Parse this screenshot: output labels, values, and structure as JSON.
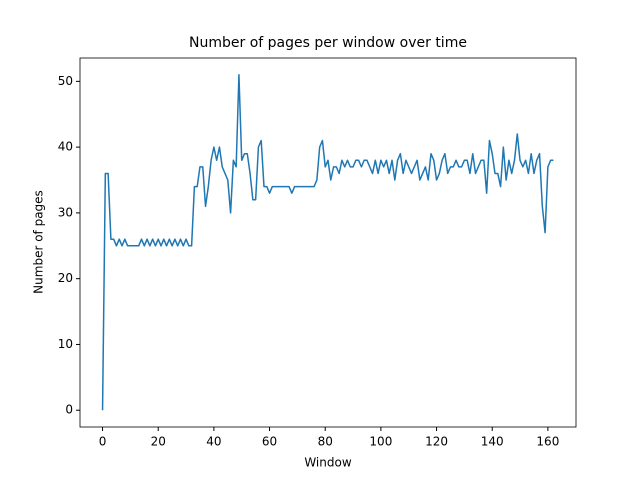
{
  "chart_data": {
    "type": "line",
    "title": "Number of pages per window over time",
    "x_label": "Window",
    "y_label": "Number of pages",
    "x": [
      0,
      1,
      2,
      3,
      4,
      5,
      6,
      7,
      8,
      9,
      10,
      11,
      12,
      13,
      14,
      15,
      16,
      17,
      18,
      19,
      20,
      21,
      22,
      23,
      24,
      25,
      26,
      27,
      28,
      29,
      30,
      31,
      32,
      33,
      34,
      35,
      36,
      37,
      38,
      39,
      40,
      41,
      42,
      43,
      44,
      45,
      46,
      47,
      48,
      49,
      50,
      51,
      52,
      53,
      54,
      55,
      56,
      57,
      58,
      59,
      60,
      61,
      62,
      63,
      64,
      65,
      66,
      67,
      68,
      69,
      70,
      71,
      72,
      73,
      74,
      75,
      76,
      77,
      78,
      79,
      80,
      81,
      82,
      83,
      84,
      85,
      86,
      87,
      88,
      89,
      90,
      91,
      92,
      93,
      94,
      95,
      96,
      97,
      98,
      99,
      100,
      101,
      102,
      103,
      104,
      105,
      106,
      107,
      108,
      109,
      110,
      111,
      112,
      113,
      114,
      115,
      116,
      117,
      118,
      119,
      120,
      121,
      122,
      123,
      124,
      125,
      126,
      127,
      128,
      129,
      130,
      131,
      132,
      133,
      134,
      135,
      136,
      137,
      138,
      139,
      140,
      141,
      142,
      143,
      144,
      145,
      146,
      147,
      148,
      149,
      150,
      151,
      152,
      153,
      154,
      155,
      156,
      157,
      158,
      159,
      160,
      161,
      162
    ],
    "series": [
      {
        "name": "pages",
        "color": "#1f77b4",
        "values": [
          0,
          36,
          36,
          26,
          26,
          25,
          26,
          25,
          26,
          25,
          25,
          25,
          25,
          25,
          26,
          25,
          26,
          25,
          26,
          25,
          26,
          25,
          26,
          25,
          26,
          25,
          26,
          25,
          26,
          25,
          26,
          25,
          25,
          34,
          34,
          37,
          37,
          31,
          34,
          38,
          40,
          38,
          40,
          37,
          36,
          35,
          30,
          38,
          37,
          51,
          38,
          39,
          39,
          36,
          32,
          32,
          40,
          41,
          34,
          34,
          33,
          34,
          34,
          34,
          34,
          34,
          34,
          34,
          33,
          34,
          34,
          34,
          34,
          34,
          34,
          34,
          34,
          35,
          40,
          41,
          37,
          38,
          35,
          37,
          37,
          36,
          38,
          37,
          38,
          37,
          37,
          38,
          38,
          37,
          38,
          38,
          37,
          36,
          38,
          36,
          38,
          37,
          38,
          36,
          38,
          35,
          38,
          39,
          36,
          38,
          37,
          36,
          37,
          38,
          35,
          36,
          37,
          35,
          39,
          38,
          35,
          36,
          38,
          39,
          36,
          37,
          37,
          38,
          37,
          37,
          38,
          38,
          36,
          39,
          36,
          37,
          38,
          38,
          33,
          41,
          39,
          36,
          36,
          34,
          40,
          35,
          38,
          36,
          38,
          42,
          38,
          37,
          38,
          36,
          39,
          36,
          38,
          39,
          31,
          27,
          37,
          38,
          38
        ]
      }
    ],
    "xlim": [
      -8.1,
      170.1
    ],
    "ylim": [
      -2.55,
      53.55
    ],
    "xticks": [
      0,
      20,
      40,
      60,
      80,
      100,
      120,
      140,
      160
    ],
    "yticks": [
      0,
      10,
      20,
      30,
      40,
      50
    ]
  }
}
